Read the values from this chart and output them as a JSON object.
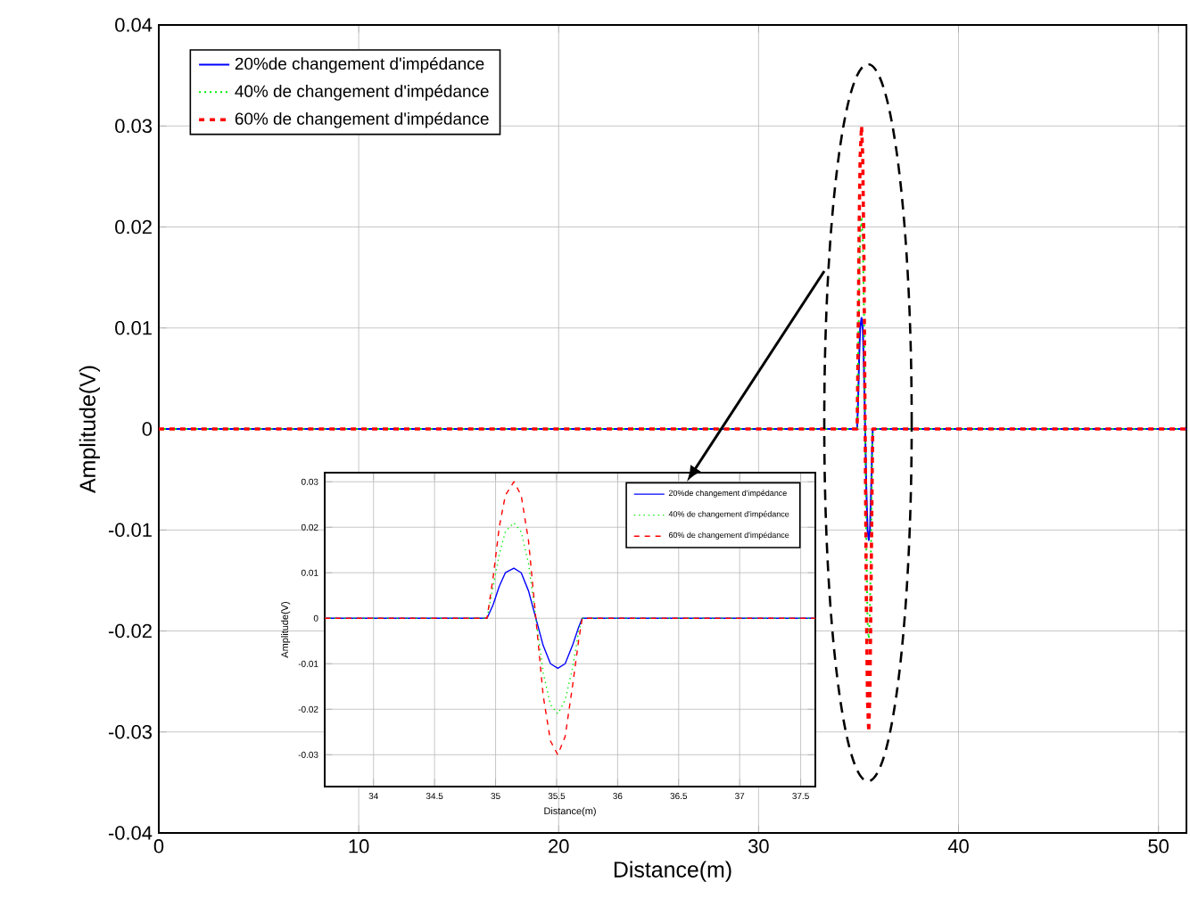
{
  "chart_data": [
    {
      "type": "line",
      "xlabel": "Distance(m)",
      "ylabel": "Amplitude(V)",
      "xlim": [
        0,
        51.4
      ],
      "ylim": [
        -0.04,
        0.04
      ],
      "xticks": [
        0,
        10,
        20,
        30,
        40,
        50
      ],
      "yticks": [
        -0.04,
        -0.03,
        -0.02,
        -0.01,
        0,
        0.01,
        0.02,
        0.03,
        0.04
      ],
      "grid": true,
      "legend": "top left",
      "x": [
        0,
        34.93,
        34.98,
        35.03,
        35.08,
        35.15,
        35.21,
        35.27,
        35.33,
        35.39,
        35.45,
        35.51,
        35.57,
        35.63,
        35.68,
        35.71,
        51.4
      ],
      "series": [
        {
          "name": "20%de changement d'impédance",
          "color": "#0000ff",
          "line_style": "solid",
          "values": [
            0,
            0,
            0.003,
            0.007,
            0.01,
            0.011,
            0.01,
            0.006,
            0,
            -0.006,
            -0.01,
            -0.011,
            -0.01,
            -0.006,
            -0.002,
            0,
            0
          ]
        },
        {
          "name": "40% de changement d'impédance",
          "color": "#00ee00",
          "line_style": "dotted",
          "values": [
            0,
            0,
            0.007,
            0.014,
            0.019,
            0.021,
            0.019,
            0.012,
            0,
            -0.012,
            -0.019,
            -0.021,
            -0.018,
            -0.011,
            -0.003,
            0,
            0
          ]
        },
        {
          "name": "60% de changement d'impédance",
          "color": "#ff0000",
          "line_style": "dashed",
          "values": [
            0,
            0,
            0.009,
            0.02,
            0.027,
            0.03,
            0.027,
            0.017,
            0,
            -0.017,
            -0.027,
            -0.03,
            -0.026,
            -0.015,
            -0.005,
            0,
            0
          ]
        }
      ]
    },
    {
      "type": "line",
      "xlabel": "Distance(m)",
      "ylabel": "Amplitude(V)",
      "xlim": [
        33.6,
        37.62
      ],
      "ylim": [
        -0.037,
        0.032
      ],
      "xticks": [
        34,
        34.5,
        35,
        35.5,
        36,
        36.5,
        37,
        37.5
      ],
      "yticks": [
        -0.03,
        -0.02,
        -0.01,
        0,
        0.01,
        0.02,
        0.03
      ],
      "grid": true,
      "legend": "top right",
      "x": [
        33.6,
        34.93,
        34.98,
        35.03,
        35.08,
        35.15,
        35.21,
        35.27,
        35.33,
        35.39,
        35.45,
        35.51,
        35.57,
        35.63,
        35.68,
        35.71,
        37.62
      ],
      "series": [
        {
          "name": "20%de changement d'impédance",
          "color": "#0000ff",
          "line_style": "solid",
          "values": [
            0,
            0,
            0.003,
            0.007,
            0.01,
            0.011,
            0.01,
            0.006,
            0,
            -0.006,
            -0.01,
            -0.011,
            -0.01,
            -0.006,
            -0.002,
            0,
            0
          ]
        },
        {
          "name": "40% de changement d'impédance",
          "color": "#00ee00",
          "line_style": "dotted",
          "values": [
            0,
            0,
            0.007,
            0.014,
            0.019,
            0.021,
            0.019,
            0.012,
            0,
            -0.012,
            -0.019,
            -0.021,
            -0.018,
            -0.011,
            -0.003,
            0,
            0
          ]
        },
        {
          "name": "60% de changement d'impédance",
          "color": "#ff0000",
          "line_style": "dashed",
          "values": [
            0,
            0,
            0.009,
            0.02,
            0.027,
            0.03,
            0.027,
            0.017,
            0,
            -0.017,
            -0.027,
            -0.03,
            -0.026,
            -0.015,
            -0.005,
            0,
            0
          ]
        }
      ]
    }
  ]
}
